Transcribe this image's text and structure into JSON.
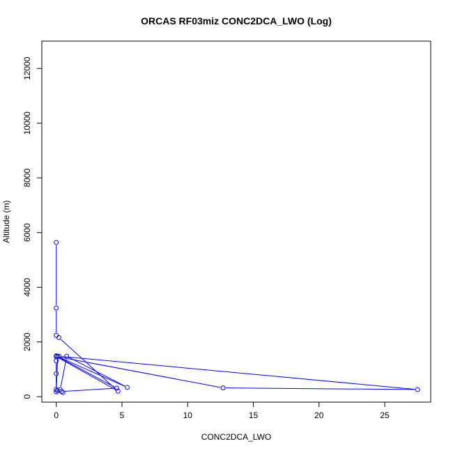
{
  "chart_data": {
    "type": "line",
    "title": "ORCAS RF03miz CONC2DCA_LWO (Log)",
    "xlabel": "CONC2DCA_LWO",
    "ylabel": "Altitude (m)",
    "xlim": [
      -1.1,
      28.5
    ],
    "ylim": [
      -200,
      13000
    ],
    "xticks": [
      0,
      5,
      10,
      15,
      20,
      25
    ],
    "yticks": [
      0,
      2000,
      4000,
      6000,
      8000,
      10000,
      12000
    ],
    "grid": false,
    "line_color": "#0000ff",
    "series": [
      {
        "points": [
          [
            0.0,
            5640
          ],
          [
            0.0,
            3240
          ],
          [
            0.0,
            2240
          ],
          [
            0.2,
            2160
          ],
          [
            4.7,
            200
          ],
          [
            0.0,
            1470
          ],
          [
            12.7,
            320
          ],
          [
            27.5,
            260
          ],
          [
            0.2,
            1480
          ],
          [
            0.0,
            1310
          ],
          [
            0.0,
            840
          ],
          [
            0.0,
            260
          ],
          [
            0.1,
            1470
          ],
          [
            0.0,
            180
          ],
          [
            0.5,
            155
          ],
          [
            0.4,
            190
          ],
          [
            4.6,
            310
          ],
          [
            0.0,
            1490
          ],
          [
            5.4,
            340
          ],
          [
            0.8,
            1480
          ],
          [
            0.3,
            260
          ],
          [
            0.1,
            220
          ]
        ]
      }
    ]
  }
}
